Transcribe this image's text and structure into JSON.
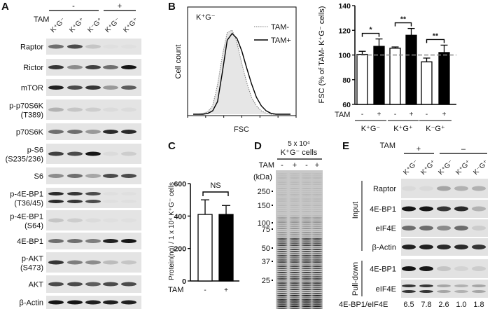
{
  "panels": {
    "A": "A",
    "B": "B",
    "C": "C",
    "D": "D",
    "E": "E"
  },
  "panelA": {
    "tam_label": "TAM",
    "tam_groups": [
      "-",
      "+"
    ],
    "lanes": [
      "K⁺G⁻",
      "K⁺G⁺",
      "K⁻G⁺",
      "K⁺G⁻",
      "K⁺G⁺"
    ],
    "rows": [
      {
        "label": [
          "Raptor"
        ],
        "bands": [
          0.6,
          0.7,
          0.25,
          0.05,
          0.05
        ]
      },
      {
        "label": [
          "Rictor"
        ],
        "bands": [
          0.8,
          0.5,
          0.75,
          0.6,
          0.95
        ]
      },
      {
        "label": [
          "mTOR"
        ],
        "bands": [
          0.9,
          0.7,
          0.8,
          0.45,
          0.65
        ]
      },
      {
        "label": [
          "p-p70S6K",
          "(T389)"
        ],
        "bands": [
          0.35,
          0.25,
          0.2,
          0.1,
          0.1
        ]
      },
      {
        "label": [
          "p70S6K"
        ],
        "bands": [
          0.6,
          0.6,
          0.45,
          0.85,
          0.85
        ]
      },
      {
        "label": [
          "p-S6",
          "(S235/236)"
        ],
        "bands": [
          0.75,
          0.7,
          0.95,
          0.1,
          0.2
        ]
      },
      {
        "label": [
          "S6"
        ],
        "bands": [
          0.5,
          0.6,
          0.4,
          0.7,
          0.7
        ]
      },
      {
        "label": [
          "p-4E-BP1",
          "(T36/45)"
        ],
        "bands": [
          0.85,
          0.8,
          0.7,
          0.05,
          0.05
        ],
        "doublet": true
      },
      {
        "label": [
          "p-4E-BP1",
          "(S64)"
        ],
        "bands": [
          0.25,
          0.2,
          0.1,
          0.05,
          0.05
        ]
      },
      {
        "label": [
          "4E-BP1"
        ],
        "bands": [
          0.6,
          0.6,
          0.55,
          0.9,
          0.95
        ]
      },
      {
        "label": [
          "p-AKT",
          "(S473)"
        ],
        "bands": [
          0.8,
          0.55,
          0.5,
          0.3,
          0.25
        ]
      },
      {
        "label": [
          "AKT"
        ],
        "bands": [
          0.7,
          0.7,
          0.65,
          0.7,
          0.7
        ]
      },
      {
        "label": [
          "β-Actin"
        ],
        "bands": [
          0.95,
          0.95,
          0.9,
          0.9,
          0.9
        ]
      }
    ]
  },
  "chart_data": [
    {
      "type": "line",
      "panel": "B-histogram",
      "annotation": "K⁺G⁻",
      "xlabel": "FSC",
      "ylabel": "Cell count",
      "legend": "top-right",
      "x": [
        0,
        1,
        2,
        3,
        4,
        5,
        6,
        7,
        8,
        9,
        10,
        11,
        12,
        13,
        14,
        15,
        16,
        17,
        18,
        19,
        20
      ],
      "series": [
        {
          "name": "TAM-",
          "style": "dotted-filled",
          "values": [
            0,
            0,
            0.01,
            0.03,
            0.1,
            0.35,
            0.7,
            0.97,
            1.0,
            0.85,
            0.6,
            0.38,
            0.2,
            0.1,
            0.04,
            0.01,
            0,
            0,
            0,
            0,
            0
          ]
        },
        {
          "name": "TAM+",
          "style": "solid",
          "values": [
            0,
            0,
            0,
            0.01,
            0.04,
            0.15,
            0.5,
            0.88,
            0.96,
            0.9,
            0.75,
            0.55,
            0.36,
            0.2,
            0.1,
            0.04,
            0.01,
            0,
            0,
            0,
            0
          ]
        }
      ]
    },
    {
      "type": "bar",
      "panel": "B-bar",
      "ylabel": "FSC (% of TAM- K⁺G⁻ cells)",
      "ylim": [
        60,
        140
      ],
      "yticks": [
        60,
        80,
        100,
        120,
        140
      ],
      "reference_line": 100,
      "tam_label": "TAM",
      "groups": [
        "K⁺G⁻",
        "K⁺G⁺",
        "K⁻G⁺"
      ],
      "tam_ticks": [
        "-",
        "+"
      ],
      "series": [
        {
          "tam": "-",
          "fill": "#ffffff",
          "values": [
            100.5,
            105.5,
            94.5
          ],
          "errors": [
            2.5,
            1,
            3
          ]
        },
        {
          "tam": "+",
          "fill": "#000000",
          "values": [
            107,
            116,
            102
          ],
          "errors": [
            6,
            5.5,
            6
          ]
        }
      ],
      "significance": [
        "*",
        "**",
        "**"
      ]
    },
    {
      "type": "bar",
      "panel": "C",
      "ylabel": "Protein(ng) / 1 x 10⁴ K⁺G⁻ cells",
      "ylim": [
        0,
        600
      ],
      "yticks": [
        0,
        200,
        400,
        600
      ],
      "tam_label": "TAM",
      "categories": [
        "-",
        "+"
      ],
      "values": [
        410,
        410
      ],
      "errors": [
        90,
        55
      ],
      "fills": [
        "#ffffff",
        "#000000"
      ],
      "significance": "NS"
    }
  ],
  "panelD": {
    "header1": "5 x 10⁴",
    "header2": "K⁺G⁻ cells",
    "tam_label": "TAM",
    "tam_lanes": [
      "-",
      "+",
      "-",
      "+"
    ],
    "unit": "(kDa)",
    "markers": [
      "250",
      "150",
      "100",
      "75",
      "50",
      "37",
      "25"
    ]
  },
  "panelE": {
    "tam_label": "TAM",
    "tam_groups": [
      "+",
      "–"
    ],
    "lanes": [
      "K⁺G⁻",
      "K⁺G⁺",
      "K⁺G⁻",
      "K⁺G⁺",
      "K⁻G⁺"
    ],
    "section_input": "Input",
    "section_pulldown": "Pull-down",
    "rows": [
      {
        "label": "Raptor",
        "bands": [
          0.1,
          0.1,
          0.4,
          0.35,
          0.35
        ]
      },
      {
        "label": "4E-BP1",
        "bands": [
          0.95,
          0.95,
          0.8,
          0.85,
          0.35
        ]
      },
      {
        "label": "eIF4E",
        "bands": [
          0.6,
          0.6,
          0.5,
          0.6,
          0.2
        ]
      },
      {
        "label": "β-Actin",
        "bands": [
          0.9,
          0.9,
          0.85,
          0.85,
          0.8
        ]
      },
      {
        "label": "4E-BP1",
        "bands": [
          0.95,
          0.95,
          0.25,
          0.15,
          0.2
        ]
      },
      {
        "label": "eIF4E",
        "bands": [
          0.8,
          0.8,
          0.4,
          0.35,
          0.4
        ],
        "doublet": true
      }
    ],
    "ratio_label": "4E-BP1/eIF4E",
    "ratios": [
      "6.5",
      "7.8",
      "2.6",
      "1.0",
      "1.8"
    ]
  }
}
